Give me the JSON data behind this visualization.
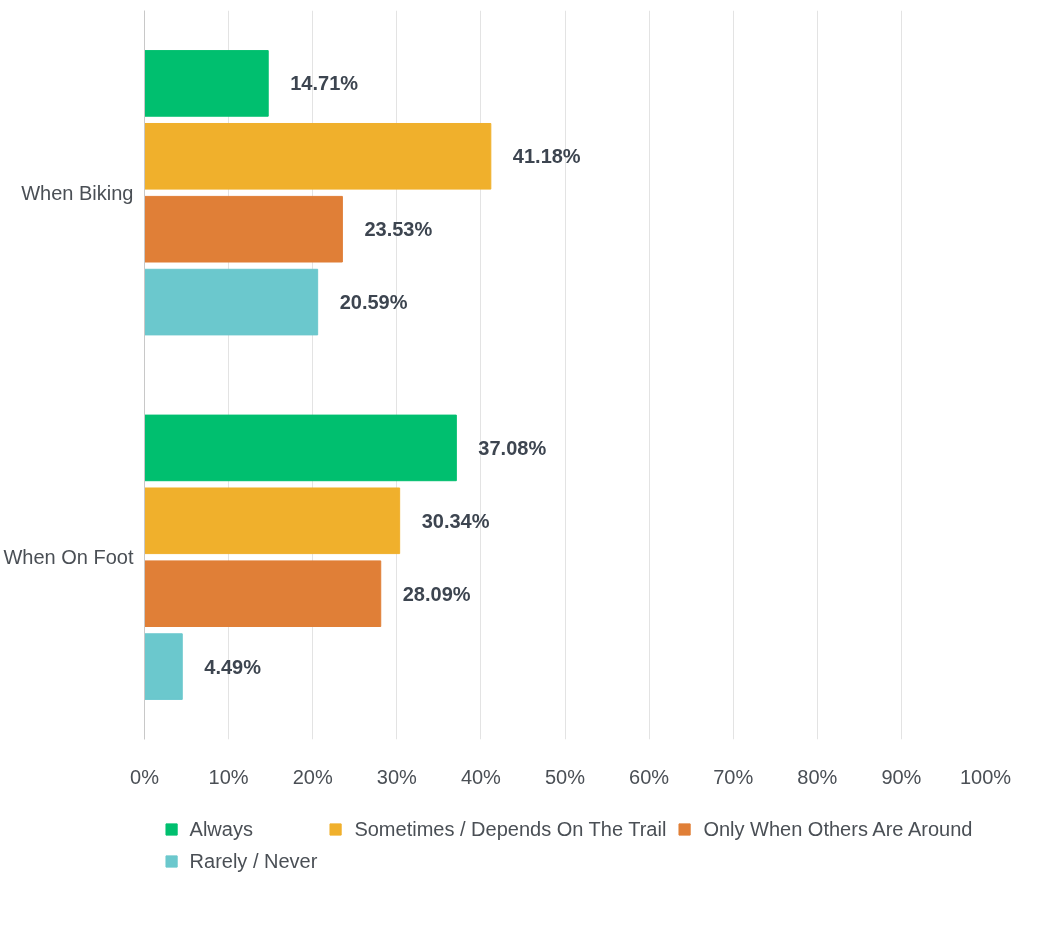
{
  "chart_data": {
    "type": "bar",
    "orientation": "horizontal",
    "categories": [
      "When Biking",
      "When On Foot"
    ],
    "series": [
      {
        "name": "Always",
        "color": "#00bf6f",
        "values": [
          14.71,
          37.08
        ],
        "value_labels": [
          "14.71%",
          "37.08%"
        ]
      },
      {
        "name": "Sometimes / Depends On The Trail",
        "color": "#f0b02c",
        "values": [
          41.18,
          30.34
        ],
        "value_labels": [
          "41.18%",
          "30.34%"
        ]
      },
      {
        "name": "Only When Others Are Around",
        "color": "#e07f37",
        "values": [
          23.53,
          28.09
        ],
        "value_labels": [
          "23.53%",
          "28.09%"
        ]
      },
      {
        "name": "Rarely / Never",
        "color": "#6bc8cd",
        "values": [
          20.59,
          4.49
        ],
        "value_labels": [
          "20.59%",
          "4.49%"
        ]
      }
    ],
    "xlim": [
      0,
      100
    ],
    "xticks": [
      {
        "value": 0,
        "label": "0%"
      },
      {
        "value": 10,
        "label": "10%"
      },
      {
        "value": 20,
        "label": "20%"
      },
      {
        "value": 30,
        "label": "30%"
      },
      {
        "value": 40,
        "label": "40%"
      },
      {
        "value": 50,
        "label": "50%"
      },
      {
        "value": 60,
        "label": "60%"
      },
      {
        "value": 70,
        "label": "70%"
      },
      {
        "value": 80,
        "label": "80%"
      },
      {
        "value": 90,
        "label": "90%"
      },
      {
        "value": 100,
        "label": "100%"
      }
    ],
    "grid": "x",
    "legend": "bottom"
  }
}
